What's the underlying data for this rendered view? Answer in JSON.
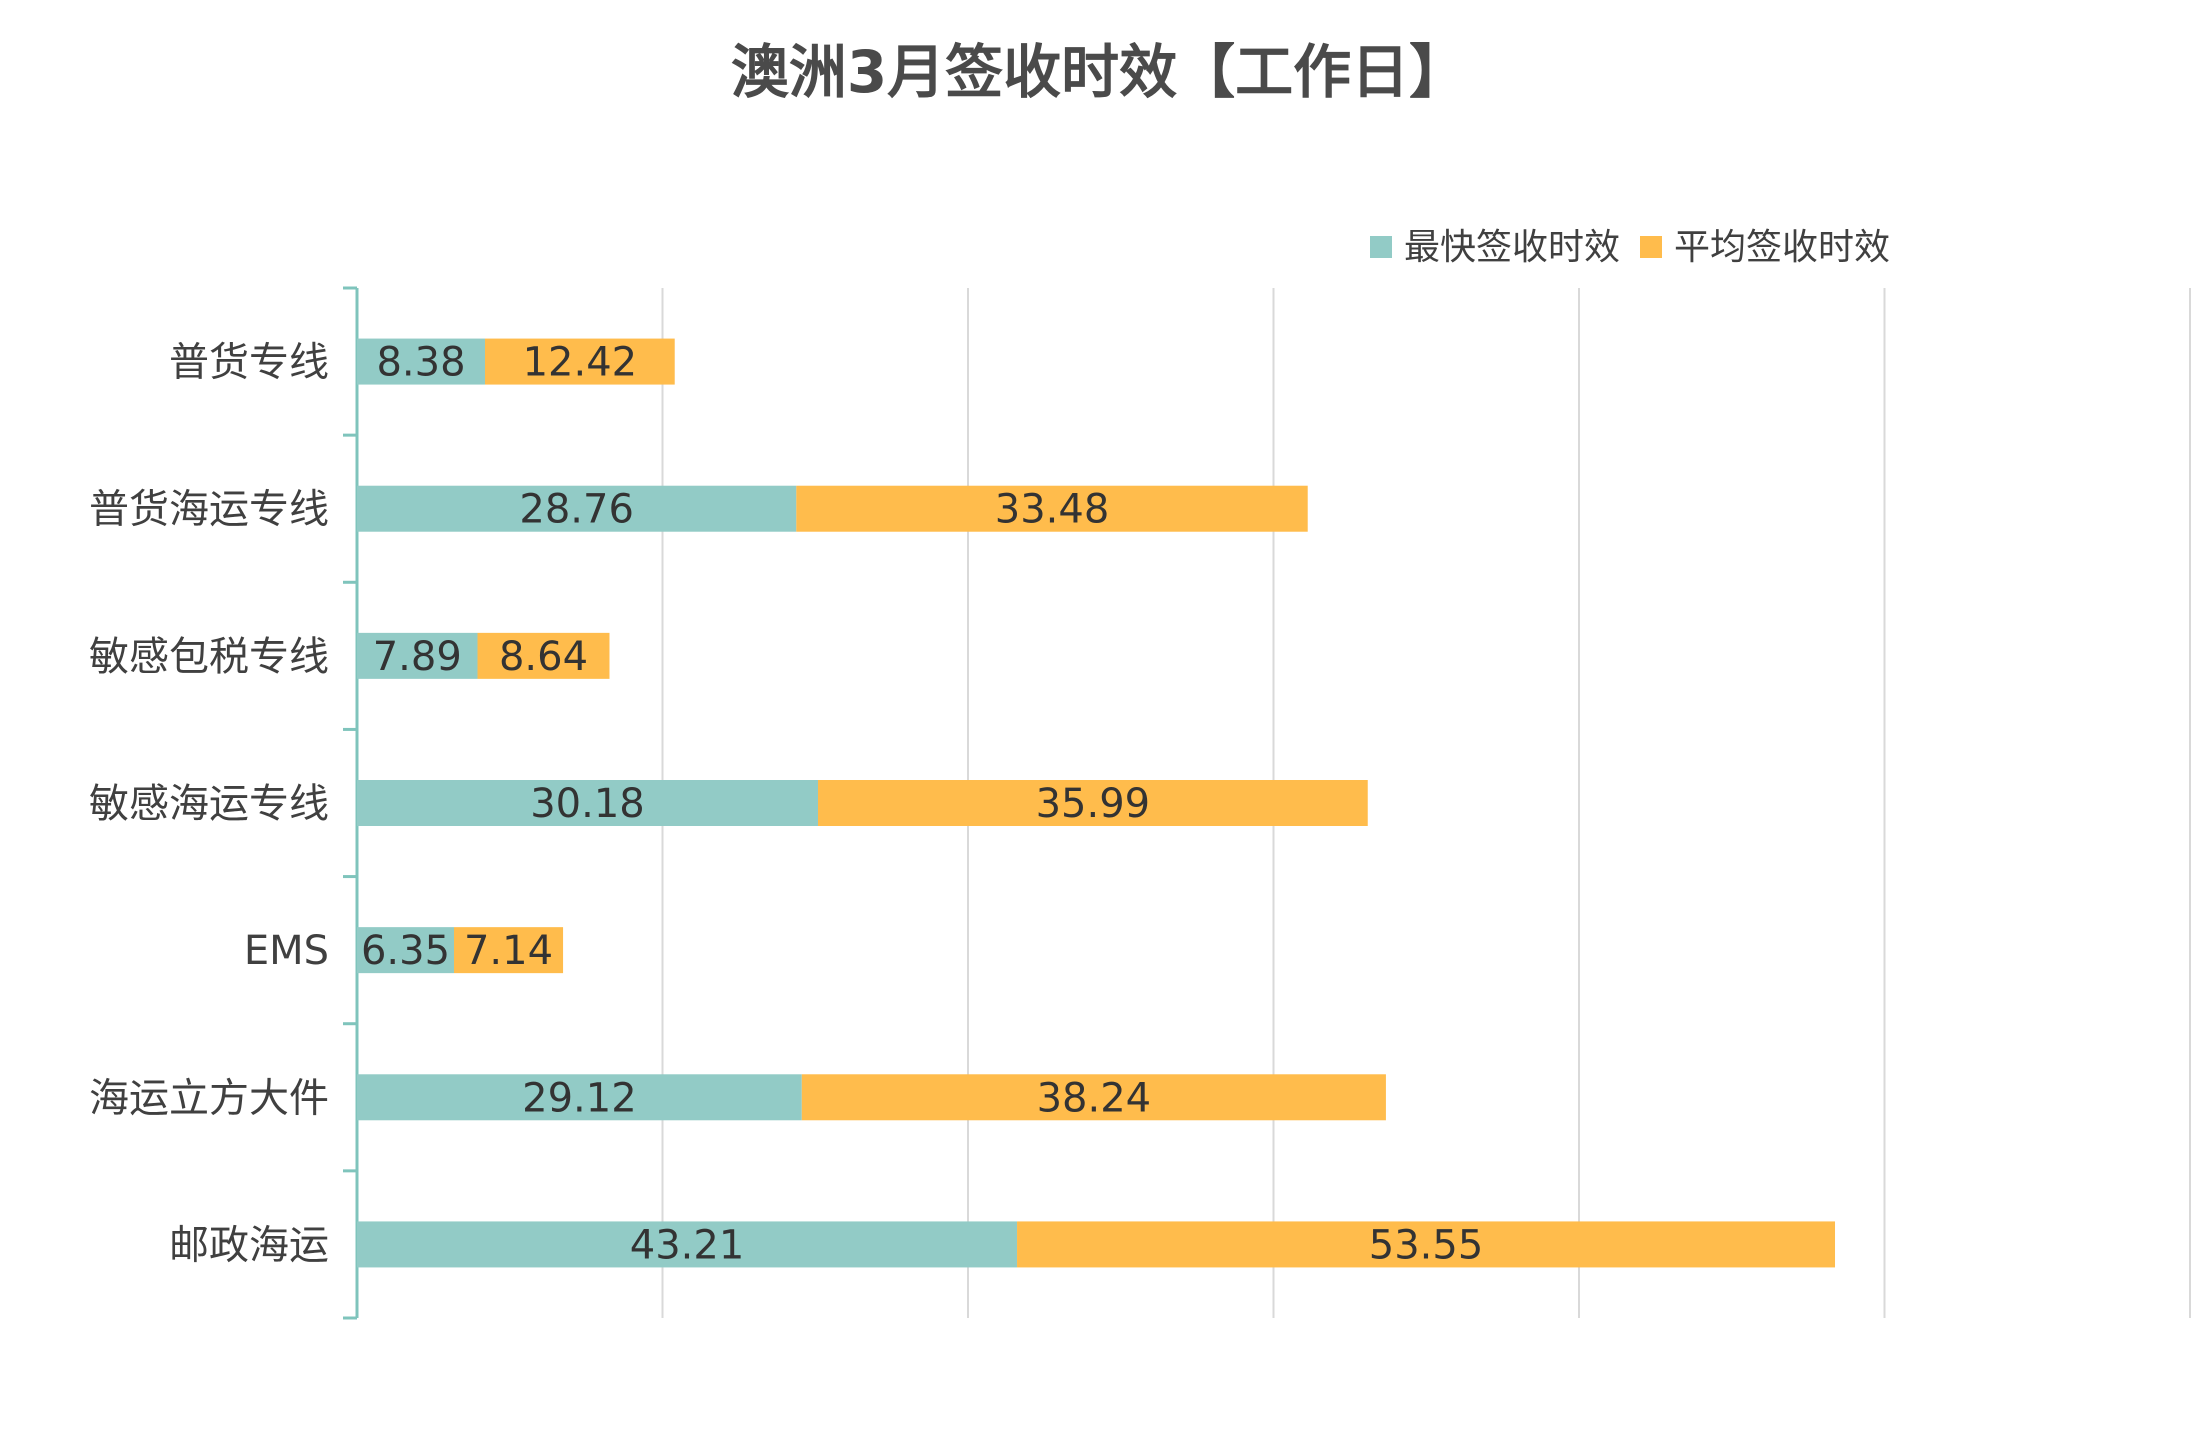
{
  "chart_data": {
    "type": "bar",
    "orientation": "horizontal",
    "stacked": true,
    "title": "澳洲3月签收时效【工作日】",
    "categories": [
      "普货专线",
      "普货海运专线",
      "敏感包税专线",
      "敏感海运专线",
      "EMS",
      "海运立方大件",
      "邮政海运"
    ],
    "series": [
      {
        "name": "最快签收时效",
        "color": "#92CBC6",
        "values": [
          8.38,
          28.76,
          7.89,
          30.18,
          6.35,
          29.12,
          43.21
        ],
        "labels": [
          "8.38",
          "28.76",
          "7.89",
          "30.18",
          "6.35",
          "29.12",
          "43.21"
        ]
      },
      {
        "name": "平均签收时效",
        "color": "#FFBC4C",
        "values": [
          12.42,
          33.48,
          8.64,
          35.99,
          7.14,
          38.24,
          53.55
        ],
        "labels": [
          "12.42",
          "33.48",
          "8.64",
          "35.99",
          "7.14",
          "38.24",
          "53.55"
        ]
      }
    ],
    "xlim": [
      0,
      120
    ],
    "grid": true,
    "legend_position": "top-right",
    "axis_color": "#7FC4BC",
    "grid_color": "#D9D9D9"
  }
}
